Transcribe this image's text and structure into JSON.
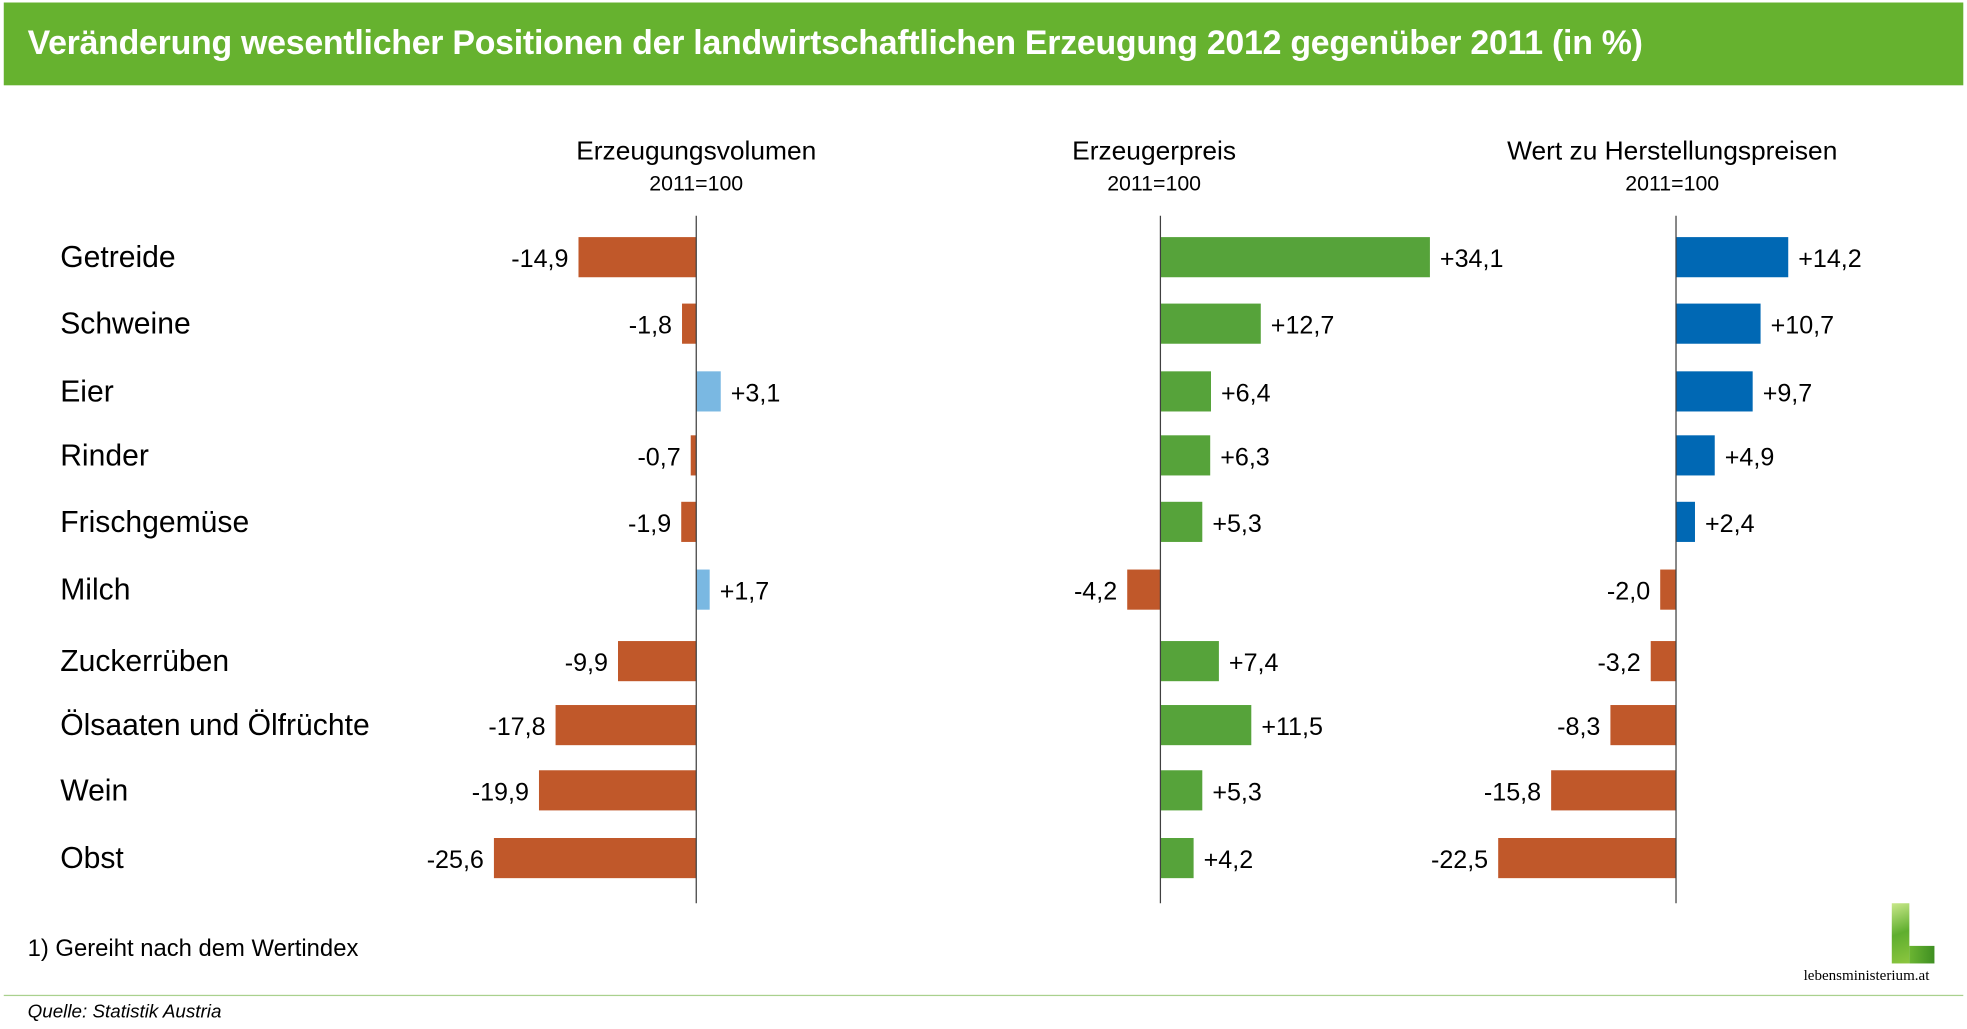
{
  "title": "Veränderung wesentlicher Positionen der landwirtschaftlichen Erzeugung 2012 gegenüber 2011 (in %)",
  "footnote": "1) Gereiht nach dem Wertindex",
  "source": "Quelle: Statistik Austria",
  "logo_text": "lebensministerium.at",
  "colors": {
    "header": "#66b22f",
    "negative": "#c0582a",
    "volume_positive": "#7ab8e2",
    "price_positive": "#56a33a",
    "value_positive": "#0068b4"
  },
  "chart_data": {
    "type": "bar",
    "orientation": "horizontal",
    "categories": [
      "Getreide",
      "Schweine",
      "Eier",
      "Rinder",
      "Frischgemüse",
      "Milch",
      "Zuckerrüben",
      "Ölsaaten und Ölfrüchte",
      "Wein",
      "Obst"
    ],
    "series": [
      {
        "name": "Erzeugungsvolumen",
        "subtitle": "2011=100",
        "values": [
          -14.9,
          -1.8,
          3.1,
          -0.7,
          -1.9,
          1.7,
          -9.9,
          -17.8,
          -19.9,
          -25.6
        ],
        "labels": [
          "-14,9",
          "-1,8",
          "+3,1",
          "-0,7",
          "-1,9",
          "+1,7",
          "-9,9",
          "-17,8",
          "-19,9",
          "-25,6"
        ],
        "pos_color_key": "volume_positive"
      },
      {
        "name": "Erzeugerpreis",
        "subtitle": "2011=100",
        "values": [
          34.1,
          12.7,
          6.4,
          6.3,
          5.3,
          -4.2,
          7.4,
          11.5,
          5.3,
          4.2
        ],
        "labels": [
          "+34,1",
          "+12,7",
          "+6,4",
          "+6,3",
          "+5,3",
          "-4,2",
          "+7,4",
          "+11,5",
          "+5,3",
          "+4,2"
        ],
        "pos_color_key": "price_positive"
      },
      {
        "name": "Wert zu Herstellungspreisen",
        "subtitle": "2011=100",
        "values": [
          14.2,
          10.7,
          9.7,
          4.9,
          2.4,
          -2.0,
          -3.2,
          -8.3,
          -15.8,
          -22.5
        ],
        "labels": [
          "+14,2",
          "+10,7",
          "+9,7",
          "+4,9",
          "+2,4",
          "-2,0",
          "-3,2",
          "-8,3",
          "-15,8",
          "-22,5"
        ],
        "pos_color_key": "value_positive"
      }
    ],
    "grid": false,
    "legend": "none"
  }
}
